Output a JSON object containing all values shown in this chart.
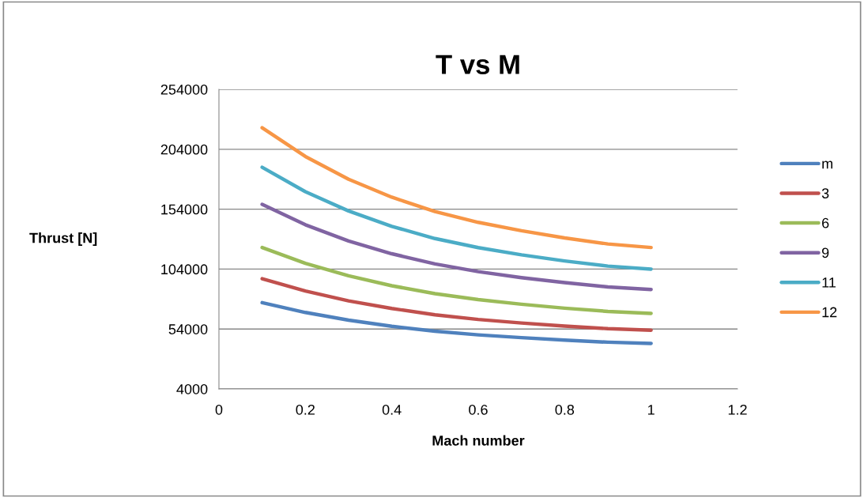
{
  "chart_data": {
    "type": "line",
    "title": "T vs M",
    "xlabel": "Mach number",
    "ylabel": "Thrust [N]",
    "x": [
      0.1,
      0.2,
      0.3,
      0.4,
      0.5,
      0.6,
      0.7,
      0.8,
      0.9,
      1.0
    ],
    "xlim": [
      0,
      1.2
    ],
    "xticks": [
      0,
      0.2,
      0.4,
      0.6,
      0.8,
      1,
      1.2
    ],
    "ylim": [
      4000,
      254000
    ],
    "yticks": [
      4000,
      54000,
      104000,
      154000,
      204000,
      254000
    ],
    "grid": "y",
    "legend": "right",
    "marker": "none",
    "line_style": "solid",
    "series": [
      {
        "name": "m",
        "color": "#4f81bd",
        "values": [
          76000,
          67800,
          61400,
          56300,
          52200,
          49100,
          46800,
          44700,
          43000,
          42000
        ]
      },
      {
        "name": "3",
        "color": "#c0504d",
        "values": [
          96000,
          85700,
          77500,
          71100,
          65900,
          62000,
          59000,
          56400,
          54300,
          53000
        ]
      },
      {
        "name": "6",
        "color": "#9bbb59",
        "values": [
          122000,
          108800,
          98400,
          90100,
          83500,
          78600,
          74700,
          71400,
          68700,
          67000
        ]
      },
      {
        "name": "9",
        "color": "#8064a2",
        "values": [
          158000,
          141000,
          127500,
          116800,
          108300,
          101900,
          96900,
          92700,
          89100,
          87000
        ]
      },
      {
        "name": "11",
        "color": "#4bacc6",
        "values": [
          189000,
          168600,
          152500,
          139700,
          129500,
          121900,
          115900,
          110800,
          106500,
          104000
        ]
      },
      {
        "name": "12",
        "color": "#f79646",
        "values": [
          222000,
          198000,
          179000,
          164000,
          152000,
          143000,
          136000,
          130000,
          125000,
          122000
        ]
      }
    ]
  }
}
